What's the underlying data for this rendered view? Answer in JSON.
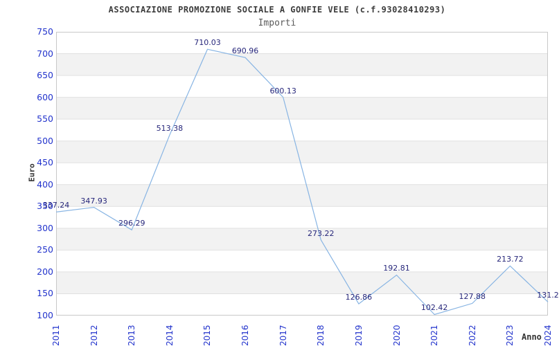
{
  "chart_data": {
    "type": "line",
    "title": "ASSOCIAZIONE PROMOZIONE SOCIALE A GONFIE VELE (c.f.93028410293)",
    "subtitle": "Importi",
    "xlabel": "Anno",
    "ylabel": "Euro",
    "categories": [
      "2011",
      "2012",
      "2013",
      "2014",
      "2015",
      "2016",
      "2017",
      "2018",
      "2019",
      "2020",
      "2021",
      "2022",
      "2023",
      "2024"
    ],
    "series": [
      {
        "name": "Importi",
        "values": [
          337.24,
          347.93,
          296.29,
          513.38,
          710.03,
          690.96,
          600.13,
          273.22,
          126.86,
          192.81,
          102.42,
          127.88,
          213.72,
          131.2
        ]
      }
    ],
    "point_labels": [
      "337.24",
      "347.93",
      "296.29",
      "513.38",
      "710.03",
      "690.96",
      "600.13",
      "273.22",
      "126.86",
      "192.81",
      "102.42",
      "127.88",
      "213.72",
      "131.2"
    ],
    "ylim": [
      100,
      750
    ],
    "ytick_step": 50,
    "grid": true,
    "legend": "none",
    "band_fill": "alternating horizontal 50-unit bands, gray on 150-200, 250-300, 350-400, 450-500, 550-600, 650-700",
    "colors": {
      "line": "#87b4e3",
      "tick_label": "#2233cc",
      "point_label": "#26267a",
      "band": "#f2f2f2",
      "grid_line": "#e0e0e0",
      "plot_border": "#c8c8c8",
      "title": "#3c3c3c",
      "subtitle": "#5a5a5a",
      "axis_title": "#333333",
      "background": "#ffffff"
    }
  }
}
